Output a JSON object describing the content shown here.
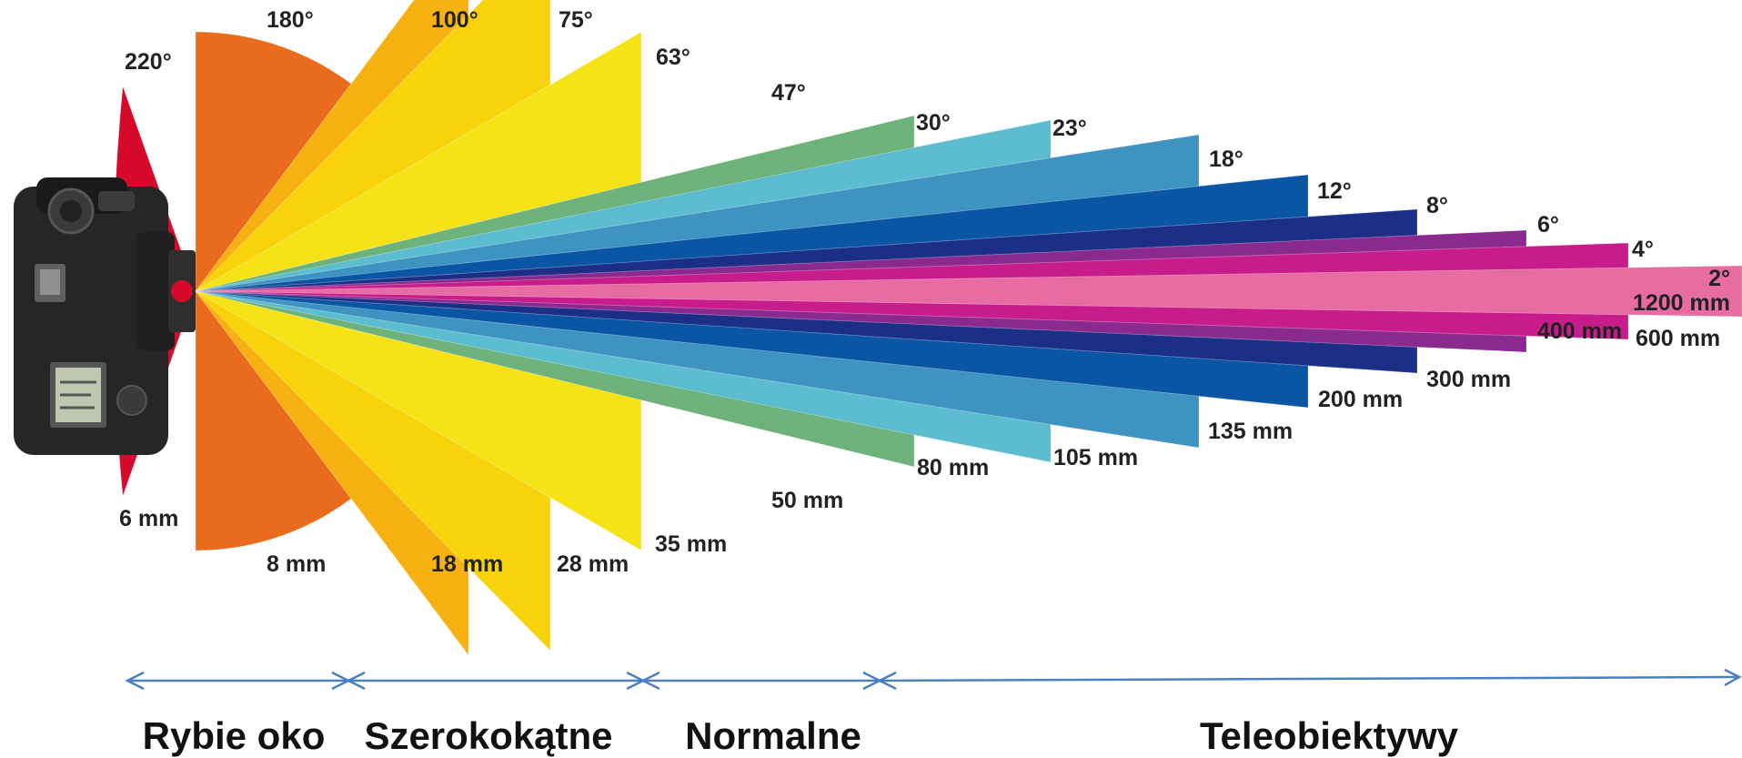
{
  "lenses": [
    {
      "angle_label": "220°",
      "focal_label": "6 mm",
      "angle_deg": 220,
      "color": "#d7092a"
    },
    {
      "angle_label": "180°",
      "focal_label": "8 mm",
      "angle_deg": 180,
      "color": "#e96b1d"
    },
    {
      "angle_label": "100°",
      "focal_label": "18 mm",
      "angle_deg": 100,
      "color": "#f7b211"
    },
    {
      "angle_label": "75°",
      "focal_label": "28 mm",
      "angle_deg": 75,
      "color": "#f8d20a"
    },
    {
      "angle_label": "63°",
      "focal_label": "35 mm",
      "angle_deg": 63,
      "color": "#f5e217"
    },
    {
      "angle_label": "47°",
      "focal_label": "50 mm",
      "angle_deg": 47,
      "color": "#8cba27"
    },
    {
      "angle_label": "30°",
      "focal_label": "80 mm",
      "angle_deg": 30,
      "color": "#6cb27a"
    },
    {
      "angle_label": "23°",
      "focal_label": "105 mm",
      "angle_deg": 23,
      "color": "#5cbcd0"
    },
    {
      "angle_label": "18°",
      "focal_label": "135 mm",
      "angle_deg": 18,
      "color": "#3e93c1"
    },
    {
      "angle_label": "12°",
      "focal_label": "200 mm",
      "angle_deg": 12,
      "color": "#0b55a5"
    },
    {
      "angle_label": "8°",
      "focal_label": "300 mm",
      "angle_deg": 8,
      "color": "#1c2f86"
    },
    {
      "angle_label": "6°",
      "focal_label": "400 mm",
      "angle_deg": 6,
      "color": "#8a2a8e"
    },
    {
      "angle_label": "4°",
      "focal_label": "600 mm",
      "angle_deg": 4,
      "color": "#c81b8c"
    },
    {
      "angle_label": "2°",
      "focal_label": "1200 mm",
      "angle_deg": 2,
      "color": "#e76ca1"
    }
  ],
  "categories": [
    {
      "label": "Rybie oko"
    },
    {
      "label": "Szerokokątne"
    },
    {
      "label": "Normalne"
    },
    {
      "label": "Teleobiektywy"
    }
  ],
  "colors": {
    "arrow": "#4a7fc1",
    "camera_body": "#2a2a2a",
    "text": "#222222"
  },
  "icons": {
    "camera": "dslr-camera-icon"
  }
}
